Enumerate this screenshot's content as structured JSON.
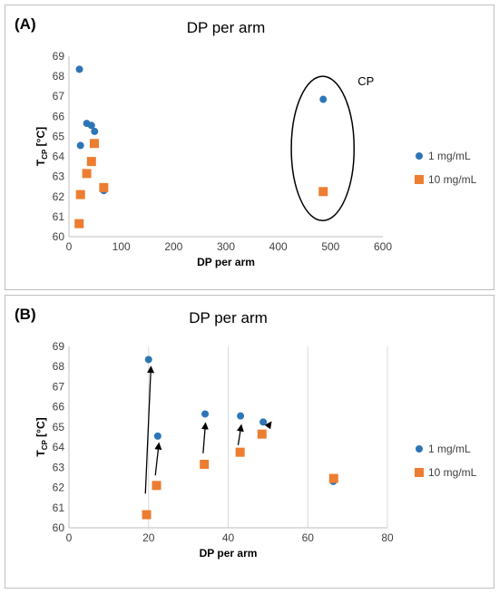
{
  "chart_data": [
    {
      "type": "scatter",
      "panel_label": "(A)",
      "title": "DP per arm",
      "xlabel": "DP per arm",
      "ylabel_main": "T",
      "ylabel_sub": "CP",
      "ylabel_unit": " [°C]",
      "xlim": [
        0,
        600
      ],
      "ylim": [
        60,
        69
      ],
      "xticks": [
        0,
        100,
        200,
        300,
        400,
        500,
        600
      ],
      "yticks": [
        60,
        61,
        62,
        63,
        64,
        65,
        66,
        67,
        68,
        69
      ],
      "grid": false,
      "legend_position": "right",
      "series": [
        {
          "name": "1 mg/mL",
          "marker": "circle",
          "color": "#2e75b6",
          "points": [
            [
              20,
              68.35
            ],
            [
              22,
              64.55
            ],
            [
              34,
              65.65
            ],
            [
              43,
              65.55
            ],
            [
              49,
              65.25
            ],
            [
              66.5,
              62.3
            ],
            [
              486,
              66.85
            ]
          ]
        },
        {
          "name": "10 mg/mL",
          "marker": "square",
          "color": "#ed7d31",
          "points": [
            [
              19.5,
              60.65
            ],
            [
              22,
              62.1
            ],
            [
              34,
              63.15
            ],
            [
              43,
              63.75
            ],
            [
              48.5,
              64.65
            ],
            [
              66.5,
              62.45
            ],
            [
              486,
              62.25
            ]
          ]
        }
      ],
      "annotations": [
        {
          "text": "CP",
          "type": "ellipse",
          "x_range": [
            425,
            545
          ],
          "y_range": [
            60.8,
            68.0
          ]
        }
      ]
    },
    {
      "type": "scatter",
      "panel_label": "(B)",
      "title": "DP per arm",
      "xlabel": "DP per arm",
      "ylabel_main": "T",
      "ylabel_sub": "CP",
      "ylabel_unit": " [°C]",
      "xlim": [
        0,
        80
      ],
      "ylim": [
        60,
        69
      ],
      "xticks": [
        0,
        20,
        40,
        60,
        80
      ],
      "yticks": [
        60,
        61,
        62,
        63,
        64,
        65,
        66,
        67,
        68,
        69
      ],
      "grid": true,
      "legend_position": "right",
      "series": [
        {
          "name": "1 mg/mL",
          "marker": "circle",
          "color": "#2e75b6",
          "points": [
            [
              20,
              68.35
            ],
            [
              22.3,
              64.55
            ],
            [
              34.2,
              65.65
            ],
            [
              43.1,
              65.55
            ],
            [
              48.8,
              65.25
            ],
            [
              66.4,
              62.3
            ]
          ]
        },
        {
          "name": "10 mg/mL",
          "marker": "square",
          "color": "#ed7d31",
          "points": [
            [
              19.5,
              60.65
            ],
            [
              22,
              62.1
            ],
            [
              34,
              63.15
            ],
            [
              43,
              63.75
            ],
            [
              48.5,
              64.65
            ],
            [
              66.5,
              62.45
            ]
          ]
        }
      ],
      "arrows": [
        {
          "from": [
            19.2,
            61.7
          ],
          "to": [
            20.6,
            68.0
          ]
        },
        {
          "from": [
            21.7,
            62.6
          ],
          "to": [
            22.6,
            64.2
          ]
        },
        {
          "from": [
            33.7,
            63.7
          ],
          "to": [
            34.3,
            65.2
          ]
        },
        {
          "from": [
            42.5,
            64.1
          ],
          "to": [
            43.3,
            65.1
          ]
        },
        {
          "from": [
            49.9,
            65.0
          ],
          "to": [
            50.8,
            65.25
          ]
        }
      ]
    }
  ]
}
